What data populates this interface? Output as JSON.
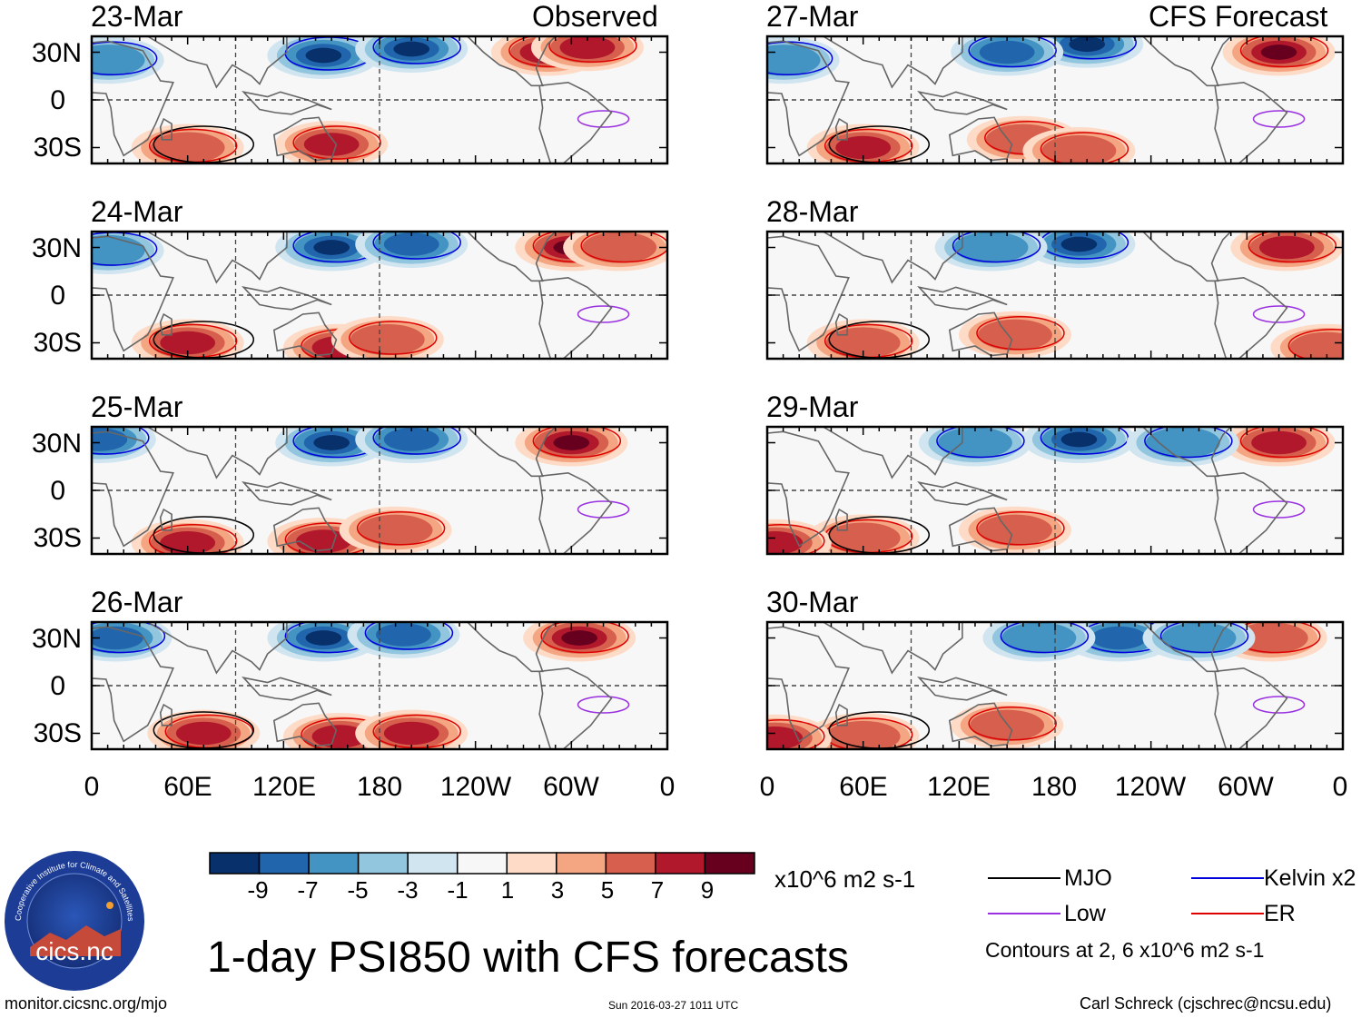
{
  "chart_data": {
    "type": "heatmap",
    "title": "1-day PSI850 with CFS forecasts",
    "variable": "PSI850",
    "units": "x10^6 m2 s-1",
    "columns": [
      {
        "label": "Observed",
        "panels": [
          {
            "date": "23-Mar",
            "centers": [
              [
                145,
                28,
                -10
              ],
              [
                200,
                32,
                -9
              ],
              [
                285,
                30,
                8
              ],
              [
                310,
                33,
                7
              ],
              [
                150,
                -28,
                7
              ],
              [
                60,
                -30,
                5
              ],
              [
                10,
                25,
                -6
              ]
            ]
          },
          {
            "date": "24-Mar",
            "centers": [
              [
                150,
                30,
                -10
              ],
              [
                200,
                32,
                -8
              ],
              [
                300,
                30,
                10
              ],
              [
                330,
                30,
                5
              ],
              [
                155,
                -33,
                7
              ],
              [
                60,
                -30,
                7
              ],
              [
                185,
                -28,
                6
              ],
              [
                10,
                28,
                -5
              ]
            ]
          },
          {
            "date": "25-Mar",
            "centers": [
              [
                150,
                30,
                -10
              ],
              [
                200,
                32,
                -8
              ],
              [
                300,
                30,
                10
              ],
              [
                145,
                -32,
                8
              ],
              [
                60,
                -33,
                8
              ],
              [
                190,
                -25,
                5
              ],
              [
                5,
                32,
                -8
              ]
            ]
          },
          {
            "date": "26-Mar",
            "centers": [
              [
                145,
                30,
                -10
              ],
              [
                195,
                32,
                -8
              ],
              [
                305,
                30,
                10
              ],
              [
                155,
                -32,
                8
              ],
              [
                70,
                -30,
                8
              ],
              [
                200,
                -30,
                7
              ],
              [
                15,
                30,
                -7
              ]
            ]
          }
        ]
      },
      {
        "label": "CFS Forecast",
        "panels": [
          {
            "date": "27-Mar",
            "centers": [
              [
                200,
                35,
                -10
              ],
              [
                150,
                30,
                -7
              ],
              [
                320,
                30,
                10
              ],
              [
                160,
                -25,
                6
              ],
              [
                60,
                -30,
                7
              ],
              [
                195,
                -32,
                5
              ],
              [
                10,
                25,
                -5
              ]
            ]
          },
          {
            "date": "28-Mar",
            "centers": [
              [
                195,
                32,
                -10
              ],
              [
                140,
                30,
                -6
              ],
              [
                325,
                30,
                8
              ],
              [
                155,
                -25,
                5
              ],
              [
                60,
                -30,
                5
              ],
              [
                350,
                -33,
                6
              ]
            ]
          },
          {
            "date": "29-Mar",
            "centers": [
              [
                195,
                32,
                -10
              ],
              [
                130,
                30,
                -6
              ],
              [
                320,
                30,
                7
              ],
              [
                155,
                -25,
                5
              ],
              [
                60,
                -30,
                6
              ],
              [
                5,
                -33,
                8
              ],
              [
                260,
                30,
                -6
              ]
            ]
          },
          {
            "date": "30-Mar",
            "centers": [
              [
                220,
                30,
                -8
              ],
              [
                170,
                30,
                -5
              ],
              [
                315,
                30,
                6
              ],
              [
                150,
                -25,
                5
              ],
              [
                60,
                -32,
                6
              ],
              [
                5,
                -33,
                7
              ],
              [
                270,
                30,
                -5
              ]
            ]
          }
        ]
      }
    ],
    "y_ticks": [
      "30N",
      "0",
      "30S"
    ],
    "x_ticks": [
      "0",
      "60E",
      "120E",
      "180",
      "120W",
      "60W",
      "0"
    ],
    "colorbar": {
      "labels": [
        "-9",
        "-7",
        "-5",
        "-3",
        "-1",
        "1",
        "3",
        "5",
        "7",
        "9"
      ],
      "colors": [
        "#08306b",
        "#2166ac",
        "#4393c3",
        "#92c5de",
        "#d1e5f0",
        "#f7f7f7",
        "#fddbc7",
        "#f4a582",
        "#d6604d",
        "#b2182b",
        "#67001f"
      ]
    },
    "legend": [
      {
        "name": "MJO",
        "color": "#000000"
      },
      {
        "name": "Kelvin x2",
        "color": "#0000dd"
      },
      {
        "name": "Low",
        "color": "#9a30e0"
      },
      {
        "name": "ER",
        "color": "#dd0000"
      }
    ],
    "contour_note": "Contours at 2, 6 x10^6 m2 s-1"
  },
  "logo_text": "cics.nc",
  "logo_ring_text": "Cooperative Institute for Climate and Satellites",
  "footer": {
    "left": "monitor.cicsnc.org/mjo",
    "center": "Sun 2016-03-27 1011 UTC",
    "right": "Carl Schreck (cjschrec@ncsu.edu)"
  }
}
